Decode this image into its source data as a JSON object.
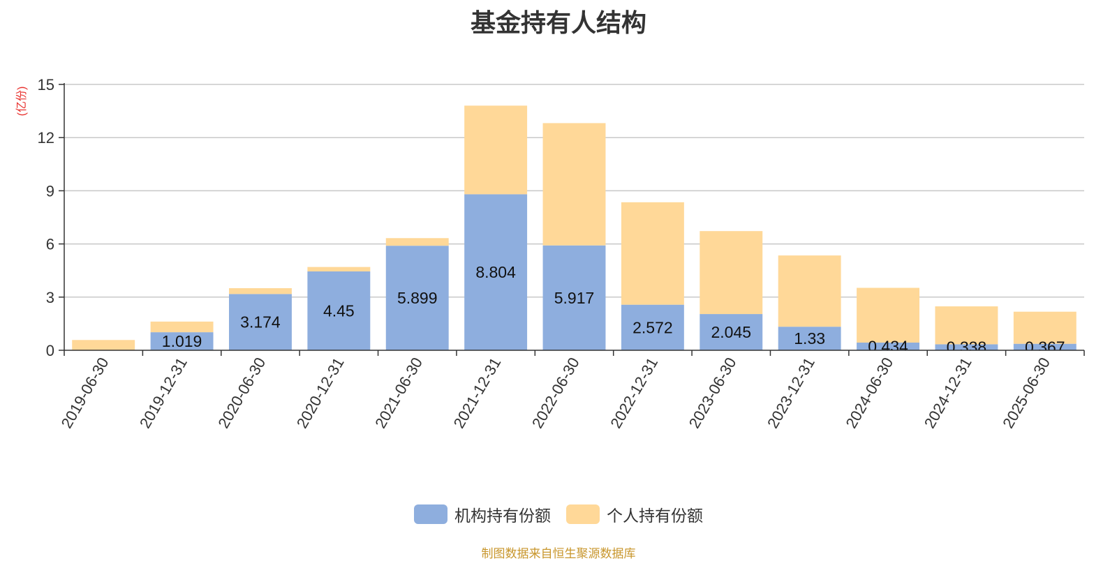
{
  "chart_data": {
    "type": "bar",
    "stacked": true,
    "title": "基金持有人结构",
    "ylabel": "(亿份)",
    "ylim": [
      0,
      15
    ],
    "yticks": [
      0,
      3,
      6,
      9,
      12,
      15
    ],
    "grid": true,
    "legend_position": "bottom",
    "categories": [
      "2019-06-30",
      "2019-12-31",
      "2020-06-30",
      "2020-12-31",
      "2021-06-30",
      "2021-12-31",
      "2022-06-30",
      "2022-12-31",
      "2023-06-30",
      "2023-12-31",
      "2024-06-30",
      "2024-12-31",
      "2025-06-30"
    ],
    "series": [
      {
        "name": "机构持有份额",
        "color": "#8eaede",
        "values": [
          0,
          1.019,
          3.174,
          4.45,
          5.899,
          8.804,
          5.917,
          2.572,
          2.045,
          1.33,
          0.434,
          0.338,
          0.367
        ],
        "labels": [
          "",
          "1.019",
          "3.174",
          "4.45",
          "5.899",
          "8.804",
          "5.917",
          "2.572",
          "2.045",
          "1.33",
          "0.434",
          "0.338",
          "0.367"
        ]
      },
      {
        "name": "个人持有份额",
        "color": "#ffd898",
        "values": [
          0.58,
          0.6,
          0.33,
          0.25,
          0.43,
          5.0,
          6.9,
          5.78,
          4.68,
          4.02,
          3.09,
          2.14,
          1.81
        ]
      }
    ],
    "source_note": "制图数据来自恒生聚源数据库",
    "source_note_color": "#c8962c",
    "ylabel_color": "#e8312e"
  }
}
